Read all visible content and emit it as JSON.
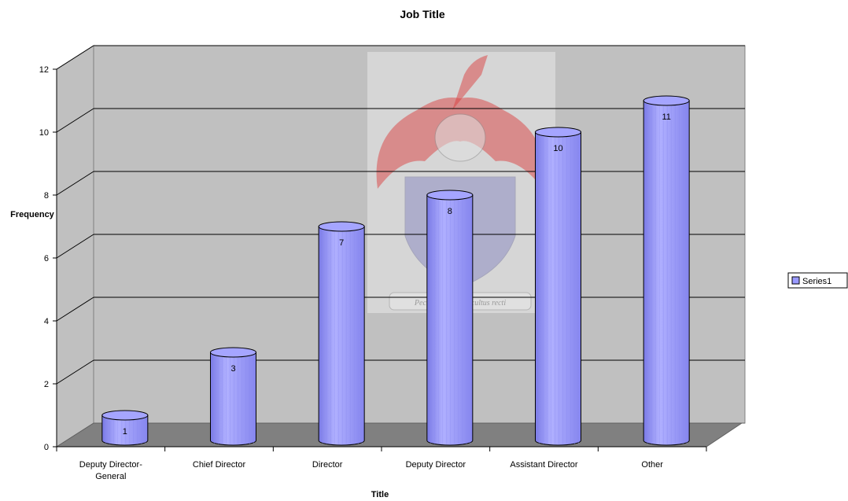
{
  "chart_data": {
    "type": "bar",
    "style": "3d-cylinder",
    "title": "Job Title",
    "xlabel": "Title",
    "ylabel": "Frequency",
    "ylim": [
      0,
      12
    ],
    "yticks": [
      0,
      2,
      4,
      6,
      8,
      10,
      12
    ],
    "categories": [
      [
        "Deputy Director-",
        "General"
      ],
      [
        "Chief Director"
      ],
      [
        "Director"
      ],
      [
        "Deputy Director"
      ],
      [
        "Assistant Director"
      ],
      [
        "Other"
      ]
    ],
    "series": [
      {
        "name": "Series1",
        "values": [
          1,
          3,
          7,
          8,
          10,
          11
        ],
        "color": "#9999ff"
      }
    ],
    "data_labels": [
      "1",
      "3",
      "7",
      "8",
      "10",
      "11"
    ],
    "grid": true,
    "legend": "right",
    "wall_color": "#c0c0c0",
    "floor_color": "#808080",
    "watermark": "university crest with motto 'Pectora roborant cultus recti'"
  }
}
